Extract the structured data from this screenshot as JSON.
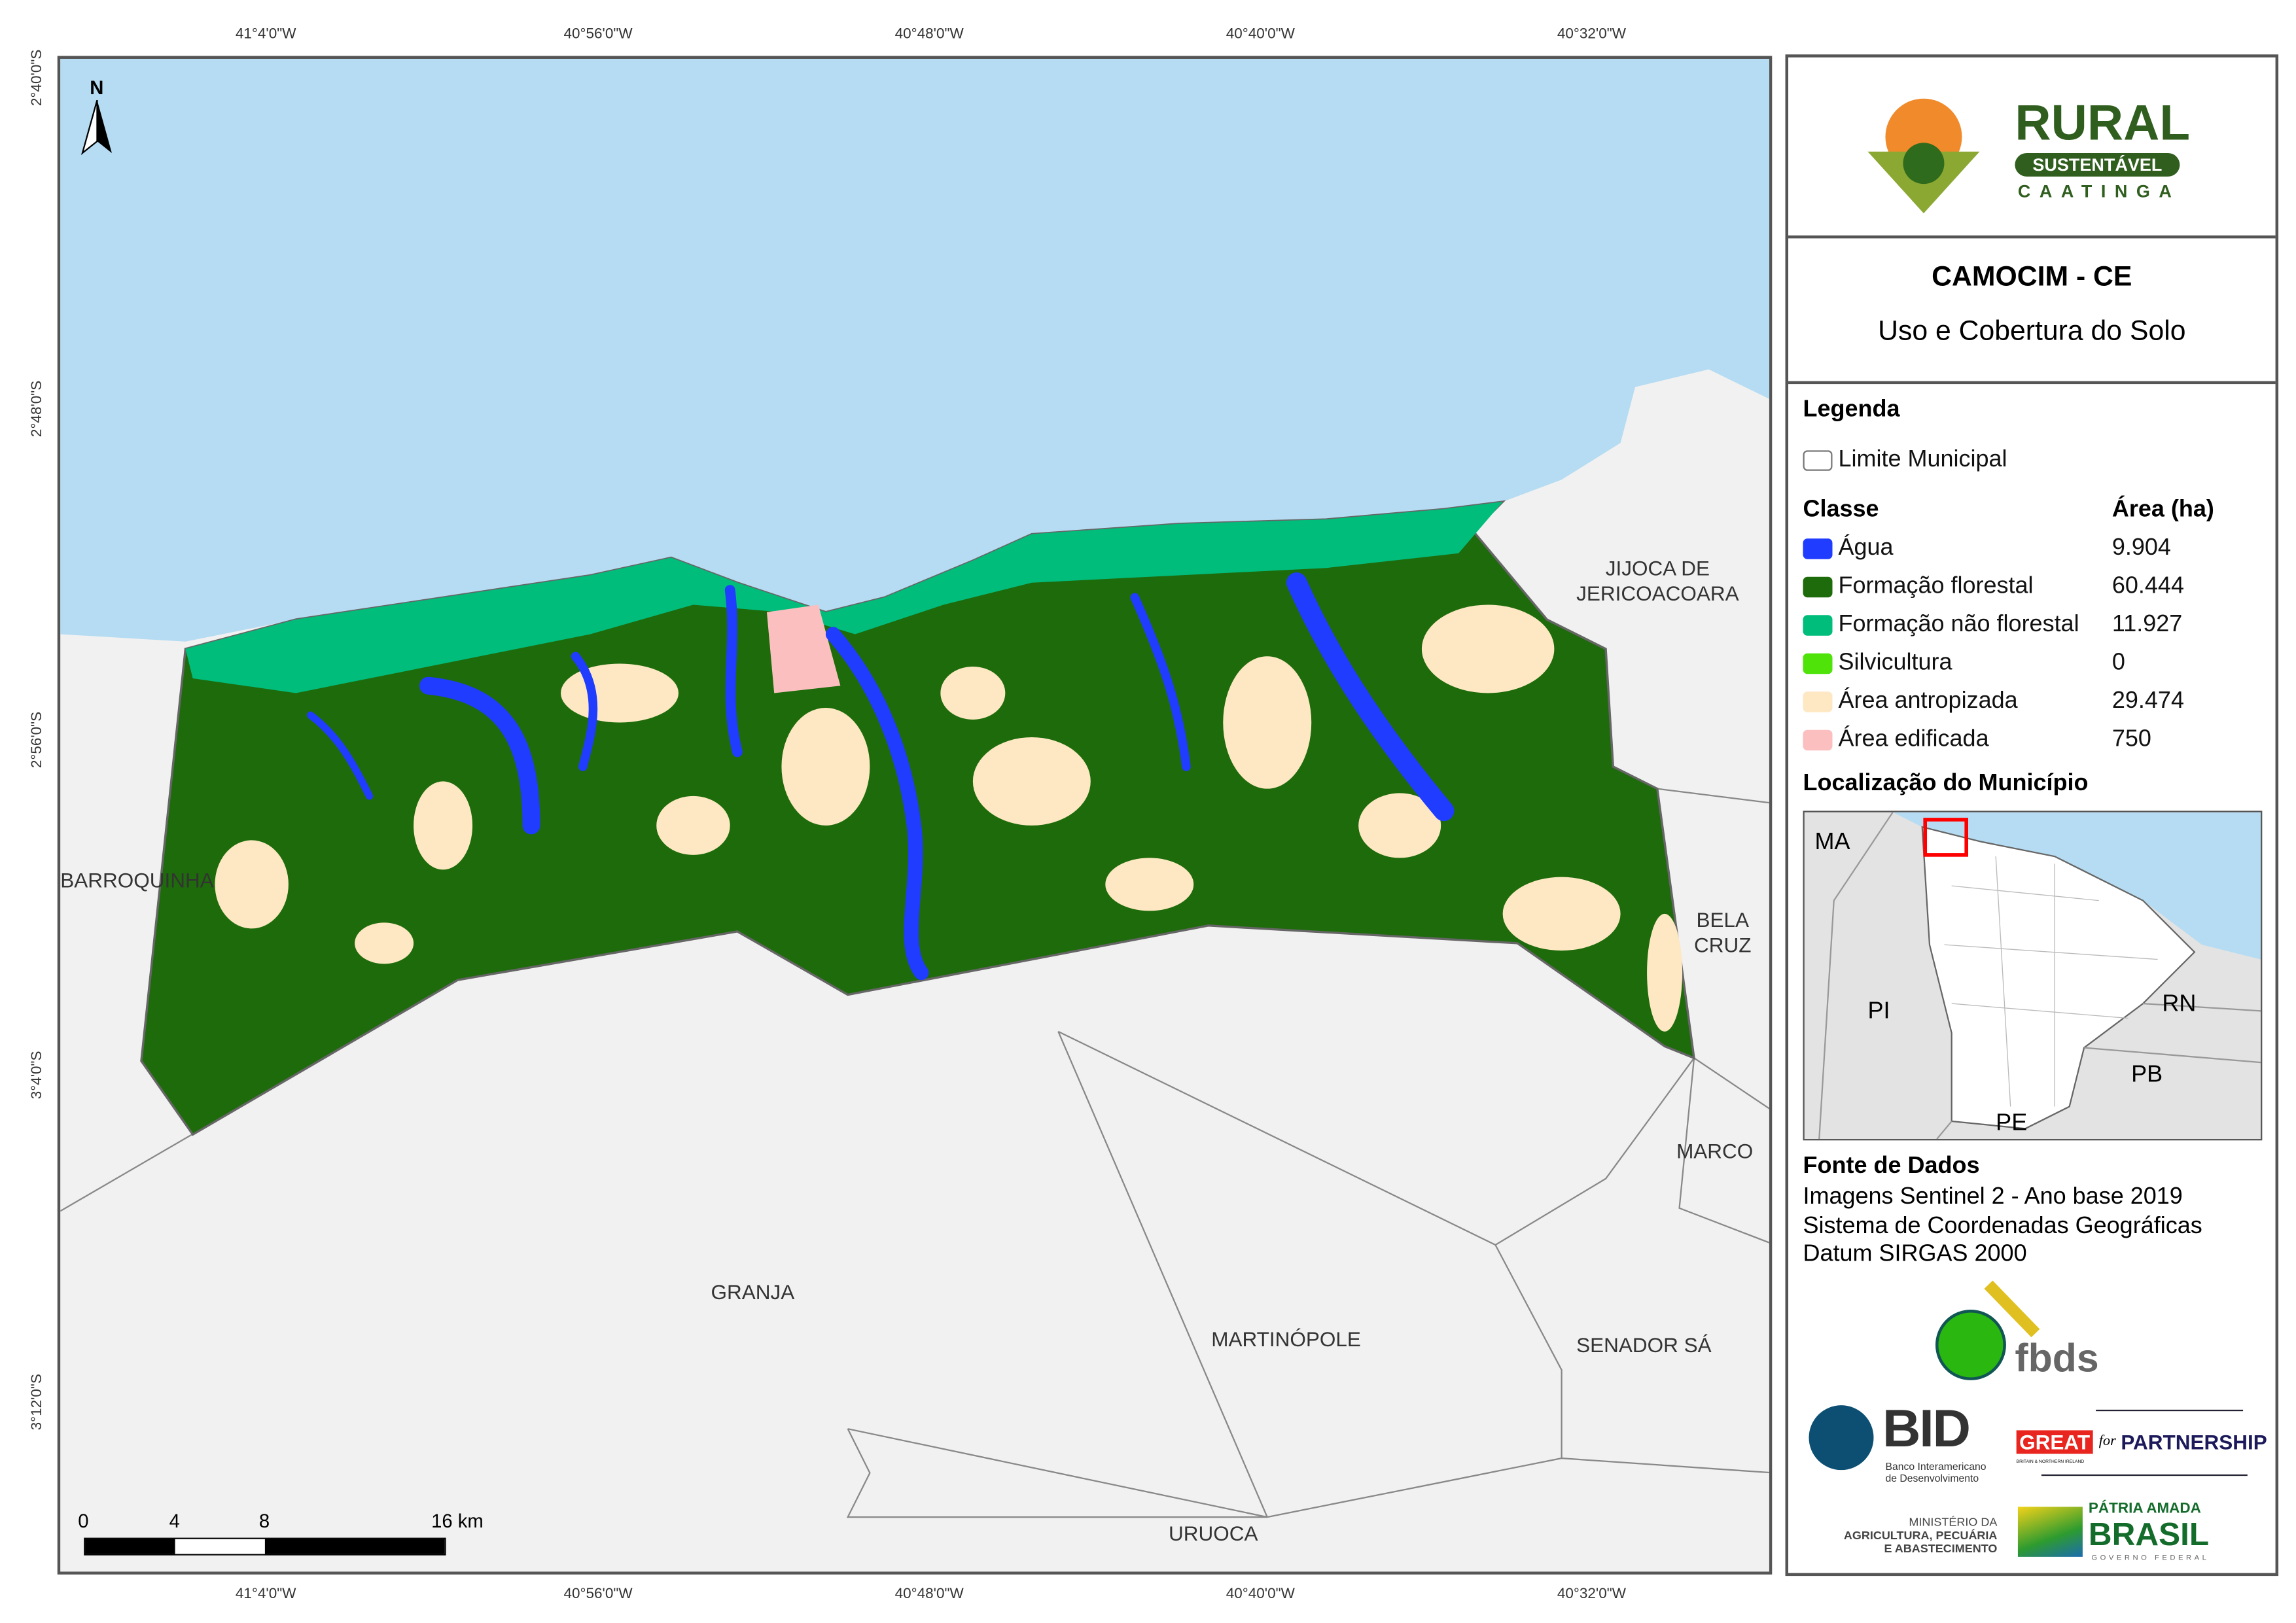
{
  "graticule": {
    "top": [
      "41°4'0\"W",
      "40°56'0\"W",
      "40°48'0\"W",
      "40°40'0\"W",
      "40°32'0\"W"
    ],
    "bottom": [
      "41°4'0\"W",
      "40°56'0\"W",
      "40°48'0\"W",
      "40°40'0\"W",
      "40°32'0\"W"
    ],
    "left": [
      "2°40'0\"S",
      "2°48'0\"S",
      "2°56'0\"S",
      "3°4'0\"S",
      "3°12'0\"S"
    ]
  },
  "north_label": "N",
  "neighbors": {
    "barroquinha": "BARROQUINHA",
    "jijoca": "JIJOCA DE\nJERICOACOARA",
    "bela_cruz": "BELA\nCRUZ",
    "marco": "MARCO",
    "granja": "GRANJA",
    "martinopole": "MARTINÓPOLE",
    "senador_sa": "SENADOR SÁ",
    "uruoca": "URUOCA"
  },
  "scalebar": {
    "labels": [
      "0",
      "4",
      "8",
      "16 km"
    ]
  },
  "logo": {
    "title": "RURAL",
    "band": "SUSTENTÁVEL",
    "sub": "CAATINGA"
  },
  "header": {
    "title": "CAMOCIM - CE",
    "subtitle": "Uso e Cobertura do Solo"
  },
  "legend": {
    "title": "Legenda",
    "boundary": "Limite Municipal",
    "class_header": "Classe",
    "area_header": "Área (ha)",
    "classes": [
      {
        "label": "Água",
        "area": "9.904",
        "color": "#1f3cff"
      },
      {
        "label": "Formação florestal",
        "area": "60.444",
        "color": "#1e6b0b"
      },
      {
        "label": "Formação não florestal",
        "area": "11.927",
        "color": "#00bd7b"
      },
      {
        "label": "Silvicultura",
        "area": "0",
        "color": "#4fe30a"
      },
      {
        "label": "Área antropizada",
        "area": "29.474",
        "color": "#fde8c3"
      },
      {
        "label": "Área edificada",
        "area": "750",
        "color": "#fbbfc0"
      }
    ]
  },
  "location": {
    "title": "Localização do Município",
    "states": [
      "MA",
      "PI",
      "RN",
      "PB",
      "PE"
    ]
  },
  "source": {
    "title": "Fonte de Dados",
    "lines": [
      "Imagens Sentinel 2 - Ano base 2019",
      "Sistema de Coordenadas Geográficas",
      "Datum SIRGAS 2000"
    ]
  },
  "logos": {
    "fbds": "fbds",
    "bid": "BID",
    "bid_sub1": "Banco Interamericano",
    "bid_sub2": "de Desenvolvimento",
    "great": "GREAT",
    "great_sub": "BRITAIN & NORTHERN IRELAND",
    "for": "for",
    "partnership": "PARTNERSHIP",
    "min1": "MINISTÉRIO DA",
    "min2": "AGRICULTURA, PECUÁRIA",
    "min3": "E ABASTECIMENTO",
    "patria": "PÁTRIA AMADA",
    "brasil": "BRASIL",
    "gov": "GOVERNO FEDERAL"
  },
  "colors": {
    "ocean": "#b5dcf2",
    "land": "#f1f1f1",
    "frame": "#555555",
    "inset_highlight": "#ff0000"
  }
}
